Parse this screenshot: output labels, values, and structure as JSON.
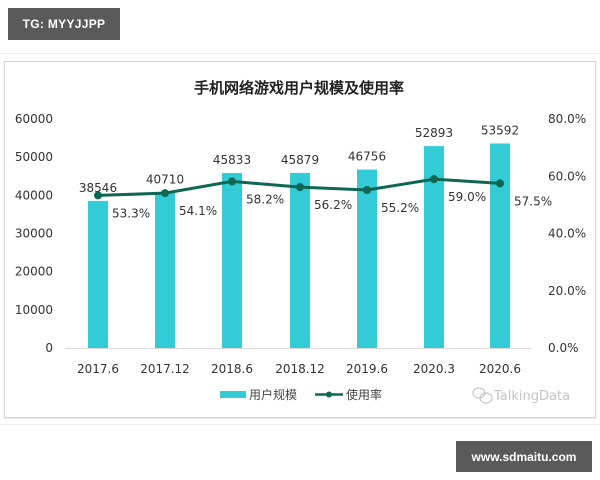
{
  "watermarks": {
    "top_tag": "TG: MYYJJPP",
    "bottom_tag": "www.sdmaitu.com",
    "source_logo": "TalkingData",
    "source_icon": "wechat-icon"
  },
  "colors": {
    "bar": "#33CCD6",
    "line": "#0E6655",
    "text": "#333333",
    "tag_bg": "#5A5A5A"
  },
  "chart_data": {
    "type": "bar+line",
    "title": "手机网络游戏用户规模及使用率",
    "categories": [
      "2017.6",
      "2017.12",
      "2018.6",
      "2018.12",
      "2019.6",
      "2020.3",
      "2020.6"
    ],
    "series": [
      {
        "name": "用户规模",
        "type": "bar",
        "axis": "left",
        "values": [
          38546,
          40710,
          45833,
          45879,
          46756,
          52893,
          53592
        ],
        "labels": [
          "38546",
          "40710",
          "45833",
          "45879",
          "46756",
          "52893",
          "53592"
        ]
      },
      {
        "name": "使用率",
        "type": "line",
        "axis": "right",
        "values": [
          53.3,
          54.1,
          58.2,
          56.2,
          55.2,
          59.0,
          57.5
        ],
        "labels": [
          "53.3%",
          "54.1%",
          "58.2%",
          "56.2%",
          "55.2%",
          "59.0%",
          "57.5%"
        ]
      }
    ],
    "left_axis": {
      "ylim": [
        0,
        60000
      ],
      "ticks": [
        "0",
        "10000",
        "20000",
        "30000",
        "40000",
        "50000",
        "60000"
      ]
    },
    "right_axis": {
      "ylim": [
        0,
        80
      ],
      "ticks": [
        "0.0%",
        "20.0%",
        "40.0%",
        "60.0%",
        "80.0%"
      ]
    },
    "legend": {
      "position": "bottom",
      "entries": [
        "用户规模",
        "使用率"
      ]
    },
    "grid": false
  }
}
